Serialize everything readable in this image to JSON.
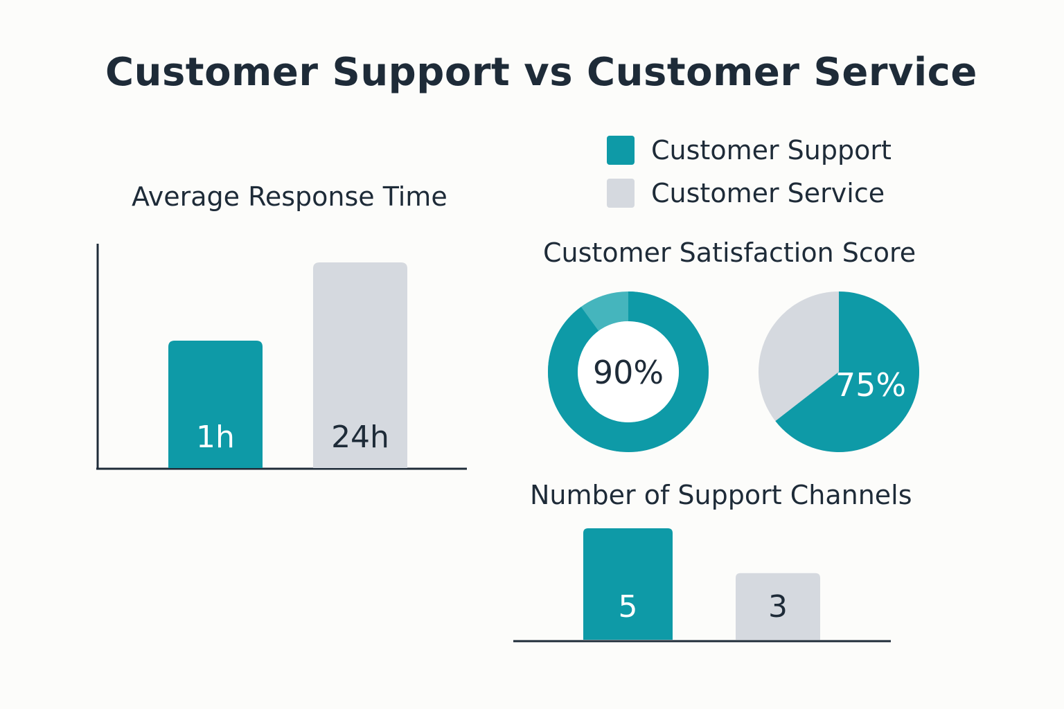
{
  "title": "Customer Support vs Customer Service",
  "legend": [
    {
      "label": "Customer Support",
      "color": "#0e9aa7"
    },
    {
      "label": "Customer Service",
      "color": "#d5d9df"
    }
  ],
  "colors": {
    "primary": "#0e9aa7",
    "secondary": "#d5d9df",
    "text": "#1e2b38",
    "axis": "#1e2b38"
  },
  "chart_data": [
    {
      "type": "bar",
      "title": "Average Response Time",
      "categories": [
        "Customer Support",
        "Customer Service"
      ],
      "values": [
        1,
        24
      ],
      "value_labels": [
        "1h",
        "24h"
      ],
      "unit": "hours"
    },
    {
      "type": "pie",
      "title": "Customer Satisfaction Score",
      "charts": [
        {
          "series": "Customer Support",
          "style": "donut",
          "value": 90,
          "label": "90%"
        },
        {
          "series": "Customer Service",
          "style": "pie",
          "value": 75,
          "label": "75%"
        }
      ]
    },
    {
      "type": "bar",
      "title": "Number of Support Channels",
      "categories": [
        "Customer Support",
        "Customer Service"
      ],
      "values": [
        5,
        3
      ],
      "value_labels": [
        "5",
        "3"
      ]
    }
  ]
}
